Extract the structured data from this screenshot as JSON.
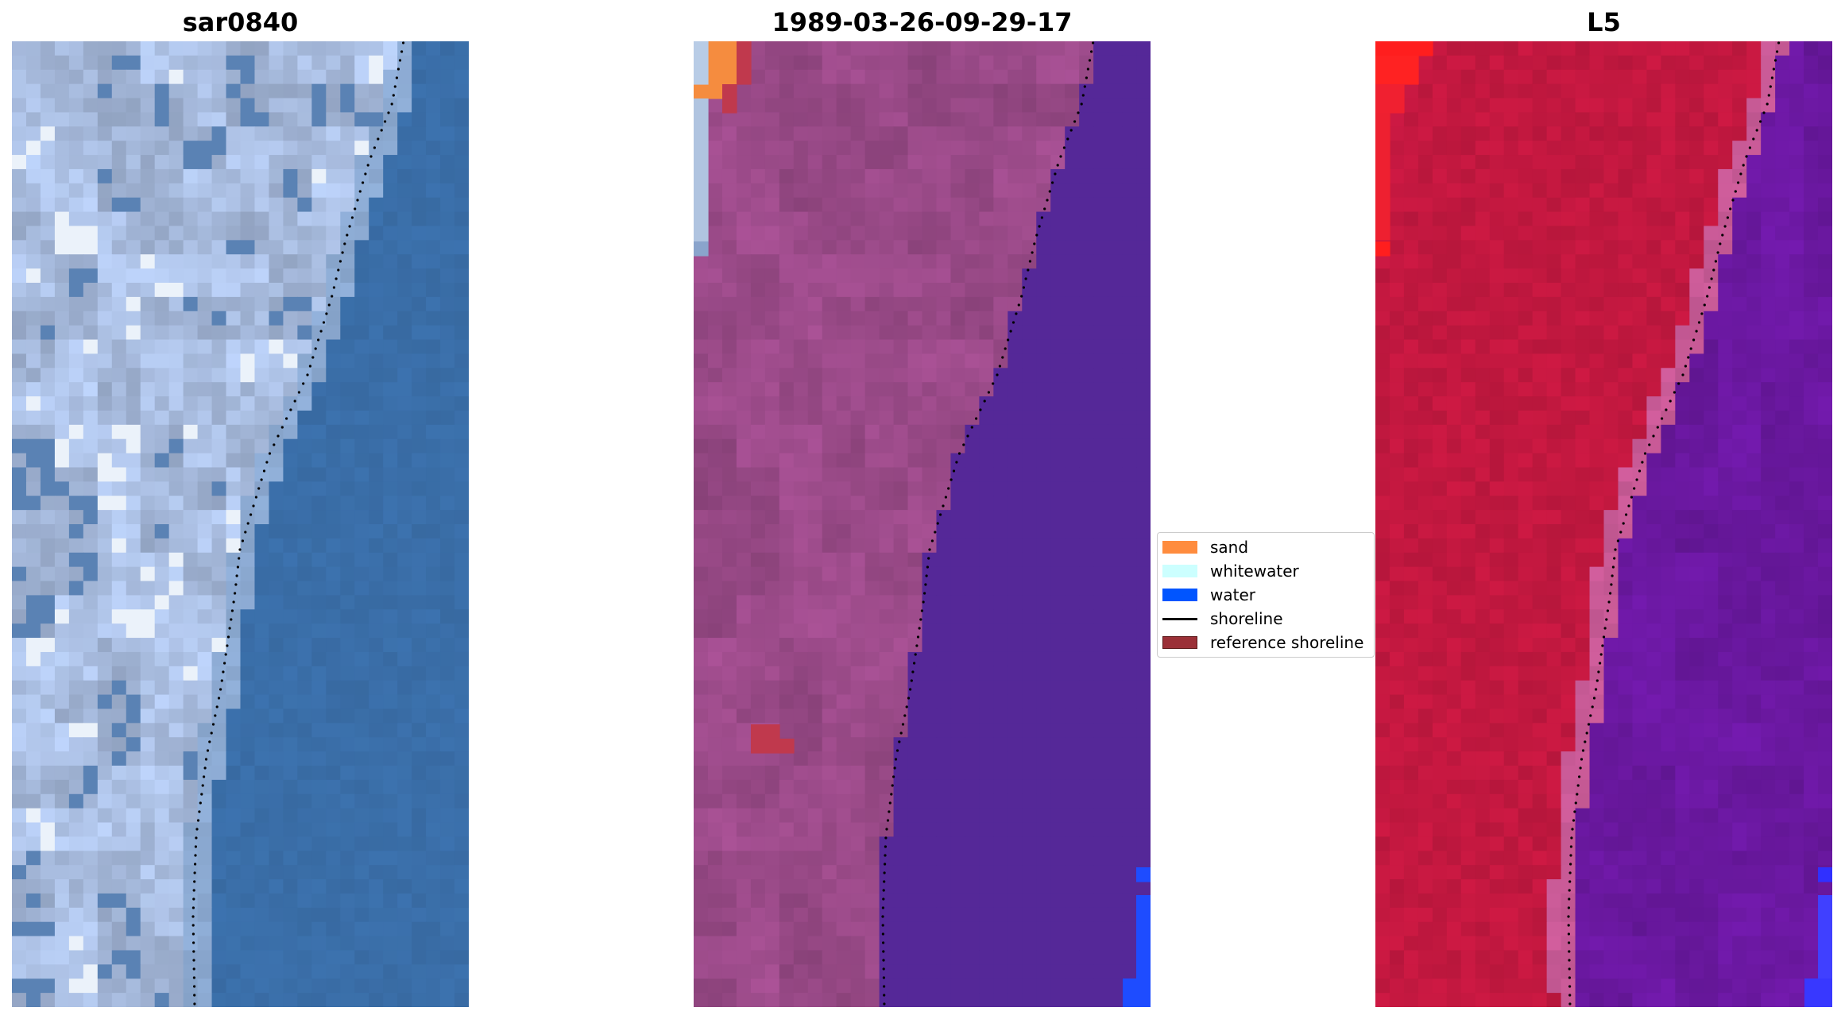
{
  "panels": [
    {
      "title": "sar0840"
    },
    {
      "title": "1989-03-26-09-29-17"
    },
    {
      "title": "L5"
    }
  ],
  "legend": {
    "items": [
      {
        "label": "sand",
        "color": "#ff8c3e",
        "kind": "patch"
      },
      {
        "label": "whitewater",
        "color": "#ccffff",
        "kind": "patch"
      },
      {
        "label": "water",
        "color": "#0055ff",
        "kind": "patch"
      },
      {
        "label": "shoreline",
        "color": "#000000",
        "kind": "line"
      },
      {
        "label": "reference shoreline",
        "color": "#9b3037",
        "kind": "patch"
      }
    ]
  },
  "colors": {
    "rgb_water": "#3a6ea8",
    "rgb_land": "#a9bde0",
    "class_land": "#9a4a88",
    "class_water": "#552898",
    "class_sand": "#f58c3f",
    "class_ref": "#c0394d",
    "class_water_blue": "#1e4cff",
    "index_land": "#c41840",
    "index_water": "#6a18a0",
    "index_sand": "#ff1e1e"
  }
}
